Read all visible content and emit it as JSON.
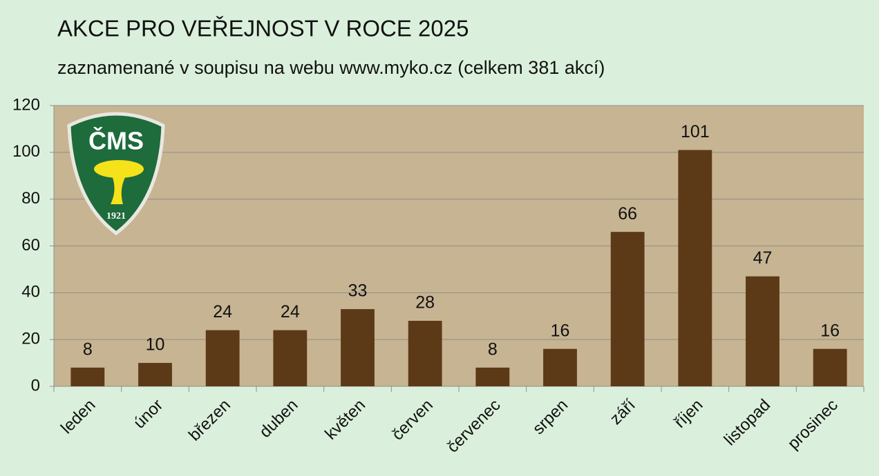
{
  "chart_data": {
    "type": "bar",
    "title": "AKCE PRO VEŘEJNOST V ROCE 2025",
    "subtitle": "zaznamenané v soupisu na webu www.myko.cz (celkem 381 akcí)",
    "categories": [
      "leden",
      "únor",
      "březen",
      "duben",
      "květen",
      "červen",
      "červenec",
      "srpen",
      "září",
      "říjen",
      "listopad",
      "prosinec"
    ],
    "values": [
      8,
      10,
      24,
      24,
      33,
      28,
      8,
      16,
      66,
      101,
      47,
      16
    ],
    "color": "#5c3a17",
    "ylim": [
      0,
      120
    ],
    "yticks": [
      0,
      20,
      40,
      60,
      80,
      100,
      120
    ],
    "grid": true
  },
  "logo": {
    "text": "ČMS",
    "year": "1921"
  }
}
